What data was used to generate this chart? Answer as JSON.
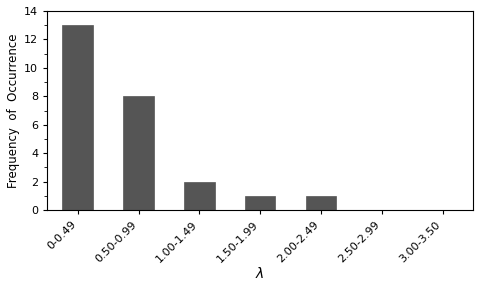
{
  "categories": [
    "0-0.49",
    "0.50-0.99",
    "1.00-1.49",
    "1.50-1.99",
    "2.00-2.49",
    "2.50-2.99",
    "3.00-3.50"
  ],
  "values": [
    13,
    8,
    2,
    1,
    1,
    0,
    0
  ],
  "bar_color": "#555555",
  "bar_edge_color": "#555555",
  "xlabel": "λ",
  "ylabel": "Frequency  of  Occurrence",
  "ylim": [
    0,
    14
  ],
  "yticks": [
    0,
    2,
    4,
    6,
    8,
    10,
    12,
    14
  ],
  "title": "",
  "bar_width": 0.5,
  "xlabel_fontsize": 10,
  "ylabel_fontsize": 8.5,
  "tick_fontsize": 8,
  "background_color": "#ffffff"
}
